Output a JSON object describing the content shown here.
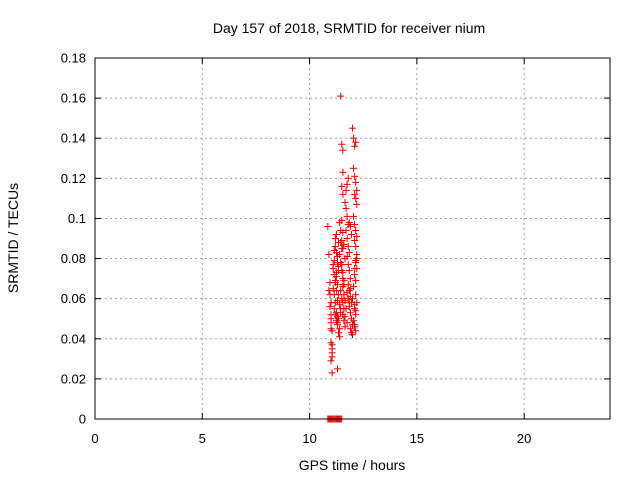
{
  "chart_data": {
    "type": "scatter",
    "title": "Day 157 of 2018, SRMTID for receiver nium",
    "xlabel": "GPS time / hours",
    "ylabel": "SRMTID / TECUs",
    "xlim": [
      0,
      24
    ],
    "ylim": [
      0,
      0.18
    ],
    "xticks": [
      0,
      5,
      10,
      15,
      20
    ],
    "xtick_labels": [
      "0",
      "5",
      "10",
      "15",
      "20"
    ],
    "yticks": [
      0,
      0.02,
      0.04,
      0.06,
      0.08,
      0.1,
      0.12,
      0.14,
      0.16,
      0.18
    ],
    "ytick_labels": [
      "0",
      "0.02",
      "0.04",
      "0.06",
      "0.08",
      "0.1",
      "0.12",
      "0.14",
      "0.16",
      "0.18"
    ],
    "grid": true,
    "legend": "none",
    "marker": "+",
    "color": "#e00000",
    "series": [
      {
        "name": "SRMTID",
        "x": [
          10.85,
          10.9,
          10.95,
          11.0,
          11.05,
          11.1,
          11.15,
          11.2,
          11.25,
          11.3,
          11.35,
          11.4,
          11.45,
          11.5,
          10.85,
          10.9,
          10.95,
          10.95,
          11.0,
          11.0,
          11.0,
          11.0,
          11.05,
          11.05,
          11.05,
          11.05,
          10.9,
          10.95,
          11.0,
          11.0,
          11.05,
          11.1,
          11.15,
          11.2,
          11.0,
          11.05,
          11.1,
          11.15,
          11.2,
          11.25,
          11.3,
          11.15,
          11.2,
          11.25,
          11.3,
          11.1,
          11.15,
          11.2,
          11.25,
          11.3,
          11.15,
          11.2,
          11.25,
          11.35,
          11.2,
          11.25,
          11.3,
          11.35,
          11.25,
          11.3,
          11.35,
          11.4,
          11.45,
          11.25,
          11.3,
          11.35,
          11.3,
          11.4,
          11.35,
          11.4,
          11.3,
          11.35,
          11.45,
          11.4,
          11.45,
          11.5,
          11.55,
          11.4,
          11.45,
          11.5,
          11.55,
          11.6,
          11.45,
          11.5,
          11.55,
          11.6,
          11.5,
          11.55,
          11.6,
          11.65,
          11.5,
          11.55,
          11.6,
          11.55,
          11.6,
          11.65,
          11.55,
          11.6,
          11.65,
          11.45,
          11.5,
          11.55,
          11.55,
          11.5,
          11.55,
          11.45,
          11.5,
          11.65,
          11.7,
          11.75,
          11.8,
          11.7,
          11.75,
          11.8,
          11.85,
          11.75,
          11.8,
          11.85,
          11.9,
          11.8,
          11.85,
          11.9,
          11.95,
          11.85,
          11.9,
          11.95,
          12.0,
          11.9,
          11.95,
          12.0,
          11.7,
          11.75,
          11.8,
          11.85,
          11.9,
          11.95,
          11.75,
          11.8,
          11.7,
          11.65,
          11.75,
          12.0,
          12.05,
          12.1,
          12.15,
          12.05,
          12.1,
          12.15,
          12.2,
          12.1,
          12.15,
          12.2,
          12.05,
          12.1,
          12.15,
          12.2,
          12.1,
          12.15,
          12.2,
          12.15,
          12.2,
          12.1,
          12.15,
          12.05,
          12.15,
          12.2,
          12.1,
          12.15,
          12.05,
          12.1,
          12.1,
          12.15,
          12.2,
          12.1,
          12.15,
          12.1,
          12.15,
          11.9,
          12.0,
          11.85
        ],
        "y": [
          0.0,
          0.0,
          0.0,
          0.0,
          0.0,
          0.0,
          0.0,
          0.0,
          0.0,
          0.0,
          0.0,
          0.0,
          0.0,
          0.0,
          0.096,
          0.082,
          0.068,
          0.062,
          0.058,
          0.052,
          0.048,
          0.045,
          0.044,
          0.037,
          0.033,
          0.031,
          0.064,
          0.056,
          0.05,
          0.029,
          0.023,
          0.077,
          0.072,
          0.069,
          0.038,
          0.035,
          0.075,
          0.084,
          0.068,
          0.064,
          0.059,
          0.055,
          0.052,
          0.049,
          0.047,
          0.065,
          0.062,
          0.058,
          0.053,
          0.051,
          0.079,
          0.086,
          0.073,
          0.088,
          0.09,
          0.083,
          0.078,
          0.074,
          0.071,
          0.067,
          0.062,
          0.057,
          0.053,
          0.092,
          0.081,
          0.076,
          0.048,
          0.045,
          0.043,
          0.041,
          0.025,
          0.05,
          0.055,
          0.098,
          0.094,
          0.089,
          0.085,
          0.082,
          0.078,
          0.074,
          0.07,
          0.067,
          0.064,
          0.06,
          0.058,
          0.055,
          0.099,
          0.093,
          0.087,
          0.08,
          0.077,
          0.073,
          0.069,
          0.066,
          0.062,
          0.059,
          0.052,
          0.049,
          0.046,
          0.161,
          0.137,
          0.134,
          0.123,
          0.116,
          0.112,
          0.088,
          0.085,
          0.108,
          0.105,
          0.101,
          0.097,
          0.094,
          0.09,
          0.086,
          0.083,
          0.081,
          0.077,
          0.074,
          0.07,
          0.067,
          0.064,
          0.061,
          0.058,
          0.056,
          0.053,
          0.05,
          0.047,
          0.045,
          0.043,
          0.042,
          0.114,
          0.117,
          0.12,
          0.098,
          0.096,
          0.092,
          0.063,
          0.06,
          0.055,
          0.051,
          0.048,
          0.145,
          0.14,
          0.136,
          0.138,
          0.125,
          0.121,
          0.118,
          0.114,
          0.112,
          0.11,
          0.107,
          0.101,
          0.097,
          0.094,
          0.091,
          0.089,
          0.086,
          0.082,
          0.079,
          0.075,
          0.072,
          0.069,
          0.066,
          0.062,
          0.058,
          0.055,
          0.052,
          0.049,
          0.046,
          0.075,
          0.078,
          0.08,
          0.057,
          0.054,
          0.047,
          0.044,
          0.065,
          0.06,
          0.058
        ]
      }
    ]
  }
}
